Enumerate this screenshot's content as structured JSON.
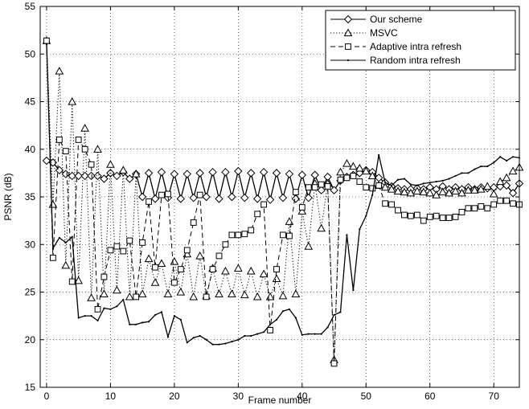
{
  "chart_data": {
    "type": "line",
    "title": "",
    "xlabel": "Frame number",
    "ylabel": "PSNR (dB)",
    "xlim": [
      -1,
      74
    ],
    "ylim": [
      15,
      55
    ],
    "xticks": [
      0,
      10,
      20,
      30,
      40,
      50,
      60,
      70
    ],
    "yticks": [
      15,
      20,
      25,
      30,
      35,
      40,
      45,
      50,
      55
    ],
    "grid": true,
    "legend_position": "top-right",
    "series": [
      {
        "name": "Our scheme",
        "marker": "diamond",
        "line_style": "solid",
        "color": "#000000",
        "x": [
          0,
          1,
          2,
          3,
          4,
          5,
          6,
          7,
          8,
          9,
          10,
          11,
          12,
          13,
          14,
          15,
          16,
          17,
          18,
          19,
          20,
          21,
          22,
          23,
          24,
          25,
          26,
          27,
          28,
          29,
          30,
          31,
          32,
          33,
          34,
          35,
          36,
          37,
          38,
          39,
          40,
          41,
          42,
          43,
          44,
          45,
          46,
          47,
          48,
          49,
          50,
          51,
          52,
          53,
          54,
          55,
          56,
          57,
          58,
          59,
          60,
          61,
          62,
          63,
          64,
          65,
          66,
          67,
          68,
          69,
          70,
          71,
          72,
          73,
          74
        ],
        "y": [
          38.8,
          38.6,
          37.8,
          37.4,
          37.2,
          37.2,
          37.2,
          37.2,
          37.2,
          36.9,
          37.5,
          37.2,
          37.6,
          36.9,
          37.4,
          35.0,
          37.5,
          34.8,
          37.6,
          34.9,
          37.4,
          34.8,
          37.4,
          34.9,
          37.5,
          35.0,
          37.6,
          34.8,
          37.6,
          35.0,
          37.7,
          34.9,
          37.5,
          34.8,
          37.6,
          34.7,
          37.5,
          34.9,
          37.4,
          34.8,
          37.3,
          34.9,
          37.3,
          35.7,
          37.1,
          35.7,
          36.7,
          37.1,
          37.3,
          37.5,
          37.8,
          37.6,
          37.0,
          36.5,
          36.1,
          35.9,
          35.8,
          35.8,
          35.9,
          35.8,
          36.0,
          35.8,
          36.1,
          35.8,
          36.0,
          35.8,
          36.0,
          35.8,
          36.0,
          35.9,
          36.0,
          36.1,
          36.2,
          35.4,
          36.4
        ]
      },
      {
        "name": "MSVC",
        "marker": "triangle",
        "line_style": "dotted",
        "color": "#000000",
        "x": [
          0,
          1,
          2,
          3,
          4,
          5,
          6,
          7,
          8,
          9,
          10,
          11,
          12,
          13,
          14,
          15,
          16,
          17,
          18,
          19,
          20,
          21,
          22,
          23,
          24,
          25,
          26,
          27,
          28,
          29,
          30,
          31,
          32,
          33,
          34,
          35,
          36,
          37,
          38,
          39,
          40,
          41,
          42,
          43,
          44,
          45,
          46,
          47,
          48,
          49,
          50,
          51,
          52,
          53,
          54,
          55,
          56,
          57,
          58,
          59,
          60,
          61,
          62,
          63,
          64,
          65,
          66,
          67,
          68,
          69,
          70,
          71,
          72,
          73,
          74
        ],
        "y": [
          51.4,
          34.2,
          48.2,
          27.8,
          45.0,
          26.2,
          42.2,
          24.4,
          40.0,
          24.8,
          38.4,
          25.2,
          37.8,
          24.5,
          37.4,
          24.8,
          28.5,
          26.0,
          28.0,
          24.8,
          28.2,
          25.0,
          29.0,
          24.5,
          28.8,
          24.6,
          27.5,
          24.8,
          27.2,
          24.8,
          27.5,
          24.7,
          27.2,
          24.5,
          26.9,
          24.5,
          26.4,
          24.6,
          32.4,
          24.8,
          33.5,
          29.8,
          36.4,
          31.7,
          36.4,
          17.9,
          37.6,
          38.5,
          38.2,
          38.0,
          37.7,
          37.2,
          36.2,
          36.0,
          35.8,
          35.6,
          35.5,
          35.4,
          35.6,
          35.5,
          35.4,
          35.2,
          35.5,
          35.4,
          35.6,
          35.4,
          35.7,
          35.7,
          35.8,
          36.1,
          35.3,
          36.6,
          37.0,
          37.7,
          38.1
        ]
      },
      {
        "name": "Adaptive intra refresh",
        "marker": "square",
        "line_style": "dashed",
        "color": "#000000",
        "x": [
          0,
          1,
          2,
          3,
          4,
          5,
          6,
          7,
          8,
          9,
          10,
          11,
          12,
          13,
          14,
          15,
          16,
          17,
          18,
          19,
          20,
          21,
          22,
          23,
          24,
          25,
          26,
          27,
          28,
          29,
          30,
          31,
          32,
          33,
          34,
          35,
          36,
          37,
          38,
          39,
          40,
          41,
          42,
          43,
          44,
          45,
          46,
          47,
          48,
          49,
          50,
          51,
          52,
          53,
          54,
          55,
          56,
          57,
          58,
          59,
          60,
          61,
          62,
          63,
          64,
          65,
          66,
          67,
          68,
          69,
          70,
          71,
          72,
          73,
          74
        ],
        "y": [
          51.4,
          28.6,
          41.0,
          39.8,
          26.1,
          41.0,
          40.0,
          38.4,
          23.2,
          26.6,
          29.4,
          29.8,
          29.3,
          30.4,
          24.5,
          30.2,
          34.5,
          27.6,
          35.2,
          35.3,
          26.0,
          27.4,
          29.4,
          32.3,
          35.2,
          24.5,
          27.4,
          28.8,
          30.0,
          31.0,
          31.0,
          31.1,
          31.5,
          33.2,
          34.2,
          21.0,
          27.4,
          31.0,
          30.9,
          35.5,
          33.9,
          36.0,
          36.0,
          36.3,
          36.1,
          17.5,
          36.8,
          37.0,
          37.2,
          36.6,
          36.0,
          35.9,
          36.2,
          34.3,
          34.2,
          33.6,
          33.1,
          33.0,
          33.1,
          32.5,
          32.9,
          33.0,
          32.8,
          32.8,
          32.9,
          33.4,
          33.8,
          33.8,
          34.0,
          33.8,
          34.2,
          34.6,
          34.6,
          34.3,
          34.2
        ]
      },
      {
        "name": "Random intra refresh",
        "marker": "point",
        "line_style": "solid",
        "color": "#000000",
        "x": [
          0,
          1,
          2,
          3,
          4,
          5,
          6,
          7,
          8,
          9,
          10,
          11,
          12,
          13,
          14,
          15,
          16,
          17,
          18,
          19,
          20,
          21,
          22,
          23,
          24,
          25,
          26,
          27,
          28,
          29,
          30,
          31,
          32,
          33,
          34,
          35,
          36,
          37,
          38,
          39,
          40,
          41,
          42,
          43,
          44,
          45,
          46,
          47,
          48,
          49,
          50,
          51,
          52,
          53,
          54,
          55,
          56,
          57,
          58,
          59,
          60,
          61,
          62,
          63,
          64,
          65,
          66,
          67,
          68,
          69,
          70,
          71,
          72,
          73,
          74
        ],
        "y": [
          51.0,
          29.6,
          30.7,
          30.2,
          30.8,
          22.3,
          22.5,
          22.5,
          22.0,
          23.3,
          23.2,
          23.5,
          24.2,
          21.6,
          21.6,
          21.8,
          21.9,
          22.6,
          22.9,
          20.3,
          22.5,
          22.1,
          19.7,
          20.2,
          20.4,
          20.0,
          19.5,
          19.5,
          19.6,
          19.8,
          20.0,
          20.4,
          20.4,
          20.6,
          20.8,
          21.6,
          22.1,
          23.0,
          23.2,
          22.3,
          20.5,
          20.6,
          20.6,
          20.6,
          21.3,
          22.6,
          22.9,
          31.0,
          25.2,
          31.6,
          33.0,
          35.2,
          39.4,
          36.5,
          36.2,
          36.8,
          36.9,
          36.3,
          36.2,
          36.4,
          36.5,
          36.6,
          36.7,
          36.9,
          37.2,
          37.5,
          37.5,
          37.9,
          38.2,
          38.2,
          38.6,
          39.2,
          38.8,
          39.2,
          39.1
        ]
      }
    ]
  }
}
